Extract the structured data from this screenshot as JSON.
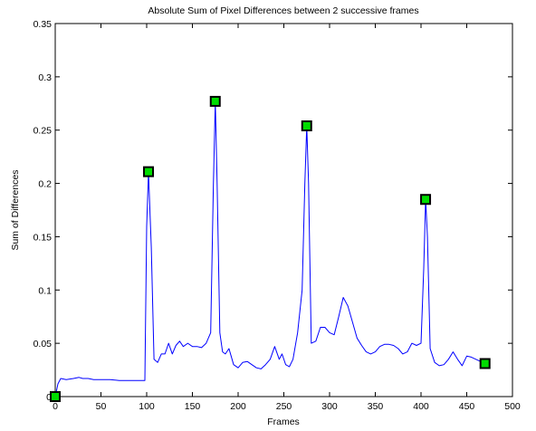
{
  "chart_data": {
    "type": "line",
    "title": "Absolute Sum of Pixel Differences between 2 successive frames",
    "xlabel": "Frames",
    "ylabel": "Sum of Differences",
    "xlim": [
      0,
      500
    ],
    "ylim": [
      0,
      0.35
    ],
    "grid": false,
    "x_ticks": [
      0,
      50,
      100,
      150,
      200,
      250,
      300,
      350,
      400,
      450,
      500
    ],
    "y_ticks": [
      0,
      0.05,
      0.1,
      0.15,
      0.2,
      0.25,
      0.3,
      0.35
    ],
    "x_tick_labels": [
      "0",
      "50",
      "100",
      "150",
      "200",
      "250",
      "300",
      "350",
      "400",
      "450",
      "500"
    ],
    "y_tick_labels": [
      "0",
      "0.05",
      "0.1",
      "0.15",
      "0.2",
      "0.25",
      "0.3",
      "0.35"
    ],
    "series": [
      {
        "color": "#0000ff",
        "x": [
          0,
          3,
          6,
          12,
          20,
          26,
          30,
          36,
          42,
          50,
          60,
          70,
          80,
          90,
          98,
          100,
          102,
          105,
          108,
          112,
          116,
          120,
          124,
          128,
          132,
          136,
          140,
          145,
          150,
          155,
          160,
          165,
          170,
          173,
          175,
          177,
          180,
          183,
          186,
          190,
          195,
          200,
          205,
          210,
          215,
          220,
          225,
          230,
          235,
          240,
          245,
          248,
          252,
          256,
          260,
          265,
          270,
          273,
          275,
          277,
          280,
          285,
          290,
          295,
          300,
          305,
          310,
          315,
          320,
          325,
          330,
          335,
          340,
          345,
          350,
          355,
          360,
          365,
          370,
          375,
          380,
          385,
          390,
          395,
          400,
          403,
          405,
          407,
          410,
          415,
          420,
          425,
          430,
          435,
          440,
          445,
          450,
          455,
          460,
          465,
          470
        ],
        "y": [
          0,
          0.012,
          0.017,
          0.016,
          0.017,
          0.018,
          0.017,
          0.017,
          0.016,
          0.016,
          0.016,
          0.015,
          0.015,
          0.015,
          0.015,
          0.16,
          0.211,
          0.14,
          0.035,
          0.032,
          0.04,
          0.04,
          0.05,
          0.04,
          0.048,
          0.052,
          0.047,
          0.05,
          0.047,
          0.047,
          0.046,
          0.05,
          0.06,
          0.2,
          0.277,
          0.2,
          0.06,
          0.042,
          0.04,
          0.045,
          0.03,
          0.027,
          0.032,
          0.033,
          0.03,
          0.027,
          0.026,
          0.03,
          0.035,
          0.047,
          0.035,
          0.04,
          0.03,
          0.028,
          0.035,
          0.06,
          0.1,
          0.2,
          0.254,
          0.2,
          0.05,
          0.052,
          0.065,
          0.065,
          0.06,
          0.058,
          0.075,
          0.093,
          0.085,
          0.07,
          0.055,
          0.048,
          0.042,
          0.04,
          0.042,
          0.047,
          0.049,
          0.049,
          0.048,
          0.045,
          0.04,
          0.042,
          0.05,
          0.048,
          0.05,
          0.12,
          0.185,
          0.15,
          0.045,
          0.032,
          0.029,
          0.03,
          0.035,
          0.042,
          0.035,
          0.029,
          0.038,
          0.037,
          0.035,
          0.033,
          0.031
        ]
      }
    ],
    "markers": {
      "color": "#00dd00",
      "edge_color": "#000000",
      "shape": "square",
      "points": [
        {
          "x": 0,
          "y": 0
        },
        {
          "x": 102,
          "y": 0.211
        },
        {
          "x": 175,
          "y": 0.277
        },
        {
          "x": 275,
          "y": 0.254
        },
        {
          "x": 405,
          "y": 0.185
        },
        {
          "x": 470,
          "y": 0.031
        }
      ]
    }
  }
}
